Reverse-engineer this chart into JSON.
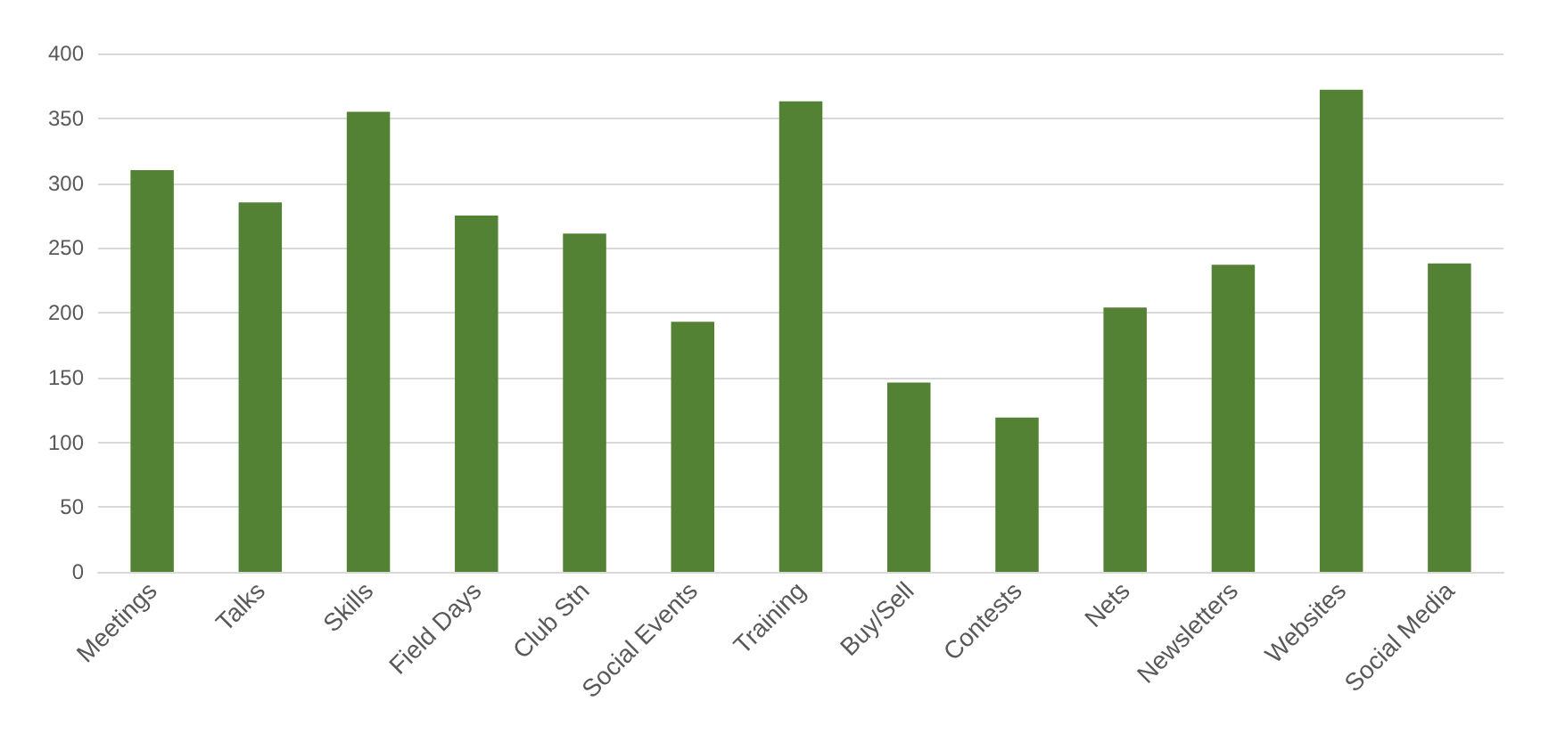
{
  "chart_data": {
    "type": "bar",
    "categories": [
      "Meetings",
      "Talks",
      "Skills",
      "Field Days",
      "Club Stn",
      "Social Events",
      "Training",
      "Buy/Sell",
      "Contests",
      "Nets",
      "Newsletters",
      "Websites",
      "Social Media"
    ],
    "values": [
      310,
      285,
      355,
      275,
      261,
      193,
      363,
      146,
      119,
      204,
      237,
      372,
      238
    ],
    "color": "#548235",
    "ylim": [
      0,
      400
    ],
    "yticks": [
      0,
      50,
      100,
      150,
      200,
      250,
      300,
      350,
      400
    ],
    "grid": true
  }
}
